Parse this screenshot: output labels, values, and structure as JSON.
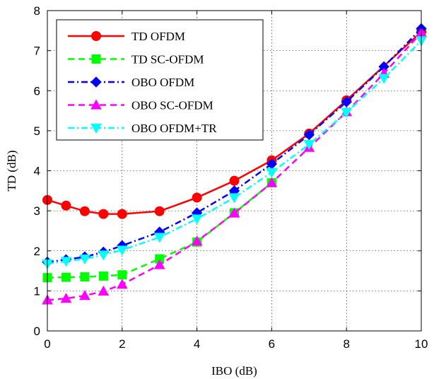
{
  "chart_data": {
    "type": "line",
    "xlabel": "IBO (dB)",
    "ylabel": "TD (dB)",
    "xlim": [
      0,
      10
    ],
    "ylim": [
      0,
      8
    ],
    "xticks": [
      0,
      2,
      4,
      6,
      8,
      10
    ],
    "yticks": [
      0,
      1,
      2,
      3,
      4,
      5,
      6,
      7,
      8
    ],
    "grid": true,
    "legend_position": "top-left",
    "series": [
      {
        "name": "TD OFDM",
        "color": "#ff0000",
        "line_style": "solid",
        "marker": "circle",
        "x": [
          0,
          0.5,
          1,
          1.5,
          2,
          3,
          4,
          5,
          6,
          7,
          8,
          10
        ],
        "y": [
          3.27,
          3.13,
          2.99,
          2.92,
          2.92,
          2.99,
          3.33,
          3.75,
          4.26,
          4.93,
          5.76,
          7.47
        ]
      },
      {
        "name": "TD SC-OFDM",
        "color": "#00ff00",
        "line_style": "dashed",
        "marker": "square",
        "x": [
          0,
          0.5,
          1,
          1.5,
          2,
          3,
          4,
          5,
          6
        ],
        "y": [
          1.33,
          1.34,
          1.35,
          1.37,
          1.4,
          1.8,
          2.22,
          2.95,
          3.7
        ]
      },
      {
        "name": "OBO OFDM",
        "color": "#0000ff",
        "line_style": "dash-dot",
        "marker": "diamond",
        "x": [
          0,
          0.5,
          1,
          1.5,
          2,
          3,
          4,
          5,
          6,
          7,
          8,
          9,
          10
        ],
        "y": [
          1.72,
          1.78,
          1.85,
          1.97,
          2.13,
          2.47,
          2.95,
          3.5,
          4.17,
          4.9,
          5.72,
          6.6,
          7.55
        ]
      },
      {
        "name": "OBO SC-OFDM",
        "color": "#ff00ff",
        "line_style": "dashed",
        "marker": "triangle-up",
        "x": [
          0,
          0.5,
          1,
          1.5,
          2,
          3,
          4,
          5,
          6,
          7,
          8,
          9,
          10
        ],
        "y": [
          0.77,
          0.81,
          0.88,
          0.99,
          1.16,
          1.65,
          2.24,
          2.94,
          3.7,
          4.58,
          5.47,
          6.43,
          7.45
        ]
      },
      {
        "name": "OBO OFDM+TR",
        "color": "#00ffff",
        "line_style": "dash-dot",
        "marker": "triangle-down",
        "x": [
          0,
          0.5,
          1,
          1.5,
          2,
          3,
          4,
          5,
          6,
          7,
          8,
          9,
          10
        ],
        "y": [
          1.68,
          1.74,
          1.8,
          1.9,
          2.02,
          2.34,
          2.8,
          3.33,
          3.96,
          4.66,
          5.46,
          6.31,
          7.25
        ]
      }
    ]
  }
}
